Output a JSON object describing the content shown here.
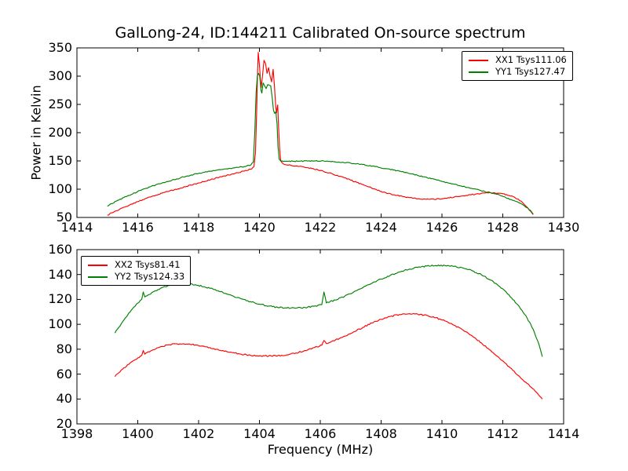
{
  "figure_title": "GalLong-24, ID:144211 Calibrated On-source spectrum",
  "colors": {
    "xx": "#ff0000",
    "yy": "#008000",
    "axis": "#000000",
    "background": "#ffffff"
  },
  "chart_data": [
    {
      "type": "line",
      "title": "GalLong-24, ID:144211 Calibrated On-source spectrum",
      "xlabel": "",
      "ylabel": "Power in Kelvin",
      "xlim": [
        1414,
        1430
      ],
      "ylim": [
        50,
        350
      ],
      "xticks": [
        1414,
        1416,
        1418,
        1420,
        1422,
        1424,
        1426,
        1428,
        1430
      ],
      "yticks": [
        50,
        100,
        150,
        200,
        250,
        300,
        350
      ],
      "grid": false,
      "legend_position": "upper right",
      "series": [
        {
          "name": "XX1 Tsys111.06",
          "color": "#ff0000",
          "noise": 0.9,
          "points": [
            [
              1415.0,
              54
            ],
            [
              1415.3,
              62
            ],
            [
              1415.7,
              71
            ],
            [
              1416.0,
              78
            ],
            [
              1416.4,
              86
            ],
            [
              1416.8,
              93
            ],
            [
              1417.2,
              99
            ],
            [
              1417.6,
              105
            ],
            [
              1418.0,
              111
            ],
            [
              1418.4,
              117
            ],
            [
              1418.8,
              123
            ],
            [
              1419.2,
              128
            ],
            [
              1419.5,
              132
            ],
            [
              1419.75,
              136
            ],
            [
              1419.82,
              140
            ],
            [
              1419.87,
              165
            ],
            [
              1419.91,
              240
            ],
            [
              1419.94,
              310
            ],
            [
              1419.96,
              342
            ],
            [
              1420.0,
              320
            ],
            [
              1420.03,
              296
            ],
            [
              1420.06,
              280
            ],
            [
              1420.1,
              300
            ],
            [
              1420.15,
              328
            ],
            [
              1420.2,
              322
            ],
            [
              1420.25,
              305
            ],
            [
              1420.3,
              315
            ],
            [
              1420.35,
              300
            ],
            [
              1420.4,
              290
            ],
            [
              1420.45,
              312
            ],
            [
              1420.49,
              285
            ],
            [
              1420.53,
              250
            ],
            [
              1420.56,
              235
            ],
            [
              1420.6,
              249
            ],
            [
              1420.63,
              210
            ],
            [
              1420.66,
              175
            ],
            [
              1420.7,
              150
            ],
            [
              1420.78,
              145
            ],
            [
              1420.9,
              143
            ],
            [
              1421.2,
              141
            ],
            [
              1421.6,
              138
            ],
            [
              1422.0,
              133
            ],
            [
              1422.4,
              127
            ],
            [
              1422.8,
              120
            ],
            [
              1423.2,
              112
            ],
            [
              1423.6,
              104
            ],
            [
              1424.0,
              96
            ],
            [
              1424.4,
              90
            ],
            [
              1424.8,
              86
            ],
            [
              1425.2,
              83
            ],
            [
              1425.6,
              82
            ],
            [
              1426.0,
              83
            ],
            [
              1426.4,
              86
            ],
            [
              1426.8,
              89
            ],
            [
              1427.2,
              92
            ],
            [
              1427.6,
              93.5
            ],
            [
              1428.0,
              92
            ],
            [
              1428.3,
              88
            ],
            [
              1428.6,
              79
            ],
            [
              1428.8,
              68
            ],
            [
              1429.0,
              55
            ]
          ]
        },
        {
          "name": "YY1 Tsys127.47",
          "color": "#008000",
          "noise": 0.9,
          "points": [
            [
              1415.0,
              70
            ],
            [
              1415.3,
              79
            ],
            [
              1415.7,
              89
            ],
            [
              1416.0,
              96
            ],
            [
              1416.4,
              104
            ],
            [
              1416.8,
              111
            ],
            [
              1417.2,
              117
            ],
            [
              1417.6,
              123
            ],
            [
              1418.0,
              128
            ],
            [
              1418.4,
              132
            ],
            [
              1418.8,
              135
            ],
            [
              1419.2,
              138
            ],
            [
              1419.5,
              140
            ],
            [
              1419.72,
              143
            ],
            [
              1419.8,
              148
            ],
            [
              1419.85,
              205
            ],
            [
              1419.89,
              270
            ],
            [
              1419.93,
              300
            ],
            [
              1419.97,
              305
            ],
            [
              1420.01,
              300
            ],
            [
              1420.05,
              275
            ],
            [
              1420.08,
              270
            ],
            [
              1420.12,
              288
            ],
            [
              1420.17,
              283
            ],
            [
              1420.22,
              278
            ],
            [
              1420.27,
              285
            ],
            [
              1420.32,
              284
            ],
            [
              1420.37,
              283
            ],
            [
              1420.42,
              262
            ],
            [
              1420.46,
              240
            ],
            [
              1420.5,
              234
            ],
            [
              1420.54,
              237
            ],
            [
              1420.58,
              215
            ],
            [
              1420.61,
              175
            ],
            [
              1420.65,
              153
            ],
            [
              1420.7,
              150
            ],
            [
              1420.9,
              149.5
            ],
            [
              1421.3,
              149.5
            ],
            [
              1421.8,
              150
            ],
            [
              1422.2,
              149.5
            ],
            [
              1422.6,
              148
            ],
            [
              1423.0,
              146
            ],
            [
              1423.4,
              143.5
            ],
            [
              1423.8,
              140
            ],
            [
              1424.2,
              136
            ],
            [
              1424.6,
              132
            ],
            [
              1425.0,
              127
            ],
            [
              1425.4,
              122
            ],
            [
              1425.8,
              117
            ],
            [
              1426.2,
              111
            ],
            [
              1426.6,
              106
            ],
            [
              1427.0,
              101
            ],
            [
              1427.4,
              96
            ],
            [
              1427.8,
              91
            ],
            [
              1428.1,
              85
            ],
            [
              1428.4,
              79
            ],
            [
              1428.7,
              71
            ],
            [
              1428.9,
              63
            ],
            [
              1429.0,
              56
            ]
          ]
        }
      ]
    },
    {
      "type": "line",
      "title": "",
      "xlabel": "Frequency (MHz)",
      "ylabel": "",
      "xlim": [
        1398,
        1414
      ],
      "ylim": [
        20,
        160
      ],
      "xticks": [
        1398,
        1400,
        1402,
        1404,
        1406,
        1408,
        1410,
        1412,
        1414
      ],
      "yticks": [
        20,
        40,
        60,
        80,
        100,
        120,
        140,
        160
      ],
      "grid": false,
      "legend_position": "upper left",
      "series": [
        {
          "name": "XX2 Tsys81.41",
          "color": "#ff0000",
          "noise": 0.55,
          "points": [
            [
              1399.25,
              58
            ],
            [
              1399.5,
              64
            ],
            [
              1399.75,
              69
            ],
            [
              1400.0,
              73
            ],
            [
              1400.13,
              75
            ],
            [
              1400.18,
              79
            ],
            [
              1400.23,
              76
            ],
            [
              1400.5,
              79.5
            ],
            [
              1400.75,
              82
            ],
            [
              1401.0,
              83.5
            ],
            [
              1401.3,
              84.3
            ],
            [
              1401.6,
              84.2
            ],
            [
              1401.9,
              83.4
            ],
            [
              1402.2,
              82
            ],
            [
              1402.5,
              80.5
            ],
            [
              1402.8,
              79
            ],
            [
              1403.1,
              77.3
            ],
            [
              1403.4,
              76
            ],
            [
              1403.7,
              75.2
            ],
            [
              1404.0,
              74.7
            ],
            [
              1404.3,
              74.5
            ],
            [
              1404.6,
              74.7
            ],
            [
              1404.9,
              75.5
            ],
            [
              1405.2,
              77
            ],
            [
              1405.5,
              79
            ],
            [
              1405.8,
              81.3
            ],
            [
              1406.05,
              83.2
            ],
            [
              1406.12,
              87
            ],
            [
              1406.2,
              84.5
            ],
            [
              1406.5,
              87.5
            ],
            [
              1406.8,
              90.5
            ],
            [
              1407.1,
              94
            ],
            [
              1407.4,
              97.5
            ],
            [
              1407.7,
              101
            ],
            [
              1408.0,
              104
            ],
            [
              1408.3,
              106.3
            ],
            [
              1408.6,
              107.8
            ],
            [
              1408.9,
              108.4
            ],
            [
              1409.2,
              108.2
            ],
            [
              1409.5,
              107.2
            ],
            [
              1409.8,
              105.3
            ],
            [
              1410.1,
              102.7
            ],
            [
              1410.4,
              99.3
            ],
            [
              1410.7,
              95.3
            ],
            [
              1411.0,
              90.5
            ],
            [
              1411.3,
              85
            ],
            [
              1411.6,
              79
            ],
            [
              1411.9,
              72.5
            ],
            [
              1412.2,
              66
            ],
            [
              1412.5,
              59
            ],
            [
              1412.8,
              52.5
            ],
            [
              1413.1,
              45.5
            ],
            [
              1413.3,
              40
            ]
          ]
        },
        {
          "name": "YY2 Tsys124.33",
          "color": "#008000",
          "noise": 0.55,
          "points": [
            [
              1399.25,
              93
            ],
            [
              1399.5,
              102
            ],
            [
              1399.75,
              110
            ],
            [
              1400.0,
              117
            ],
            [
              1400.13,
              120
            ],
            [
              1400.18,
              126
            ],
            [
              1400.23,
              122
            ],
            [
              1400.5,
              126
            ],
            [
              1400.75,
              129
            ],
            [
              1401.0,
              131.2
            ],
            [
              1401.3,
              132.6
            ],
            [
              1401.6,
              132.8
            ],
            [
              1401.9,
              131.8
            ],
            [
              1402.2,
              130
            ],
            [
              1402.5,
              128
            ],
            [
              1402.8,
              125.5
            ],
            [
              1403.1,
              123
            ],
            [
              1403.4,
              120.5
            ],
            [
              1403.7,
              118.2
            ],
            [
              1404.0,
              116.2
            ],
            [
              1404.3,
              114.6
            ],
            [
              1404.6,
              113.6
            ],
            [
              1404.9,
              113.1
            ],
            [
              1405.2,
              113
            ],
            [
              1405.5,
              113.5
            ],
            [
              1405.8,
              114.6
            ],
            [
              1406.05,
              115.8
            ],
            [
              1406.12,
              126
            ],
            [
              1406.2,
              117.2
            ],
            [
              1406.5,
              119.5
            ],
            [
              1406.8,
              122.5
            ],
            [
              1407.1,
              126
            ],
            [
              1407.4,
              129.5
            ],
            [
              1407.7,
              133
            ],
            [
              1408.0,
              136.3
            ],
            [
              1408.3,
              139.3
            ],
            [
              1408.6,
              142
            ],
            [
              1408.9,
              144
            ],
            [
              1409.2,
              145.7
            ],
            [
              1409.5,
              146.8
            ],
            [
              1409.8,
              147.2
            ],
            [
              1410.1,
              147.2
            ],
            [
              1410.4,
              146.6
            ],
            [
              1410.7,
              145.2
            ],
            [
              1411.0,
              143
            ],
            [
              1411.3,
              139.8
            ],
            [
              1411.6,
              135.5
            ],
            [
              1411.9,
              130.3
            ],
            [
              1412.2,
              123.8
            ],
            [
              1412.5,
              115.5
            ],
            [
              1412.8,
              105
            ],
            [
              1413.0,
              96
            ],
            [
              1413.2,
              83
            ],
            [
              1413.3,
              74
            ]
          ]
        }
      ]
    }
  ]
}
